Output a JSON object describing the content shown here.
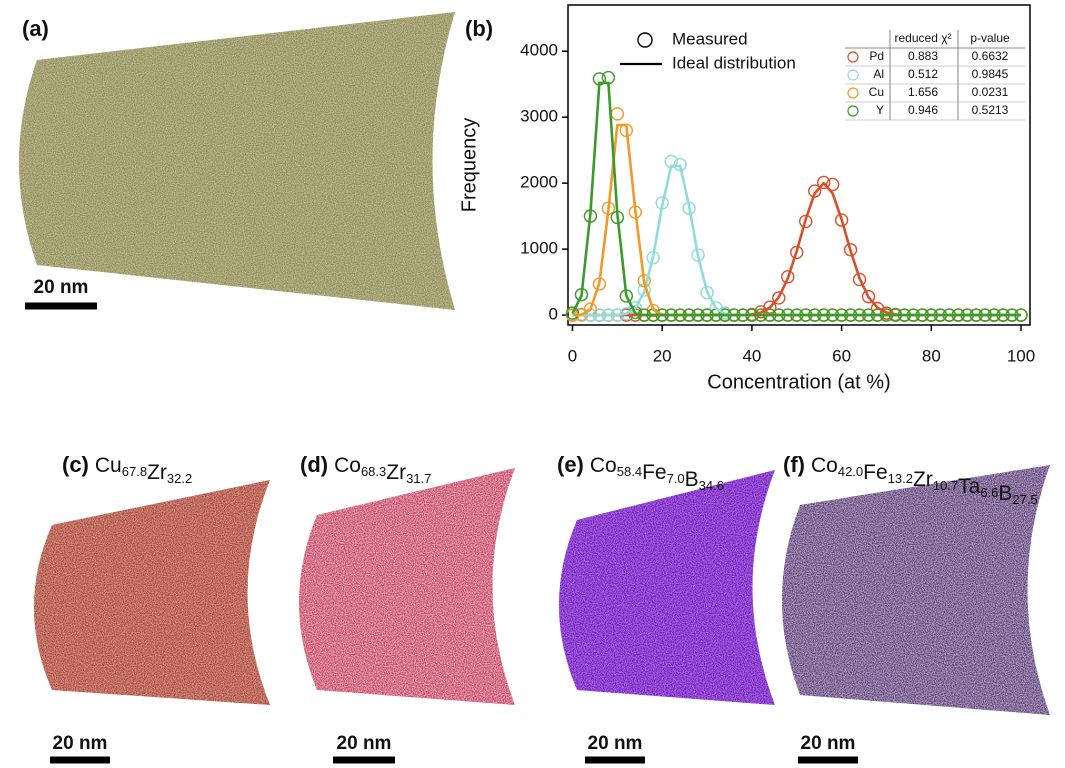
{
  "chart_data": {
    "type": "scatter",
    "xlabel": "Concentration (at %)",
    "ylabel": "Frequency",
    "xlim": [
      -1,
      102
    ],
    "ylim": [
      -150,
      4700
    ],
    "xticks": [
      0,
      20,
      40,
      60,
      80,
      100
    ],
    "yticks": [
      0,
      1000,
      2000,
      3000,
      4000
    ],
    "grid": false,
    "legend": {
      "measured": "Measured",
      "ideal": "Ideal distribution"
    },
    "table_headers": [
      "reduced χ²",
      "p-value"
    ],
    "x": [
      0,
      2,
      4,
      6,
      8,
      10,
      12,
      14,
      16,
      18,
      20,
      22,
      24,
      26,
      28,
      30,
      32,
      34,
      36,
      38,
      40,
      42,
      44,
      46,
      48,
      50,
      52,
      54,
      56,
      58,
      60,
      62,
      64,
      66,
      68,
      70,
      72,
      74,
      76,
      78,
      80,
      82,
      84,
      86,
      88,
      90,
      92,
      94,
      96,
      98,
      100
    ],
    "series": [
      {
        "name": "Pd",
        "color": "#d8502a",
        "reduced_chi2": 0.883,
        "p_value": 0.6632,
        "values": [
          0,
          0,
          0,
          0,
          0,
          0,
          0,
          0,
          0,
          0,
          0,
          0,
          0,
          0,
          0,
          0,
          0,
          0,
          0,
          0,
          10,
          50,
          120,
          260,
          580,
          950,
          1420,
          1880,
          2010,
          1980,
          1440,
          990,
          540,
          280,
          100,
          30,
          10,
          0,
          0,
          0,
          0,
          0,
          0,
          0,
          0,
          0,
          0,
          0,
          0,
          0,
          0
        ],
        "fit": [
          0,
          0,
          0,
          0,
          0,
          0,
          0,
          0,
          0,
          0,
          0,
          0,
          0,
          0,
          0,
          0,
          0,
          0,
          0,
          0,
          12,
          40,
          112,
          271,
          556,
          973,
          1452,
          1846,
          2000,
          1846,
          1452,
          973,
          556,
          271,
          112,
          40,
          12,
          0,
          0,
          0,
          0,
          0,
          0,
          0,
          0,
          0,
          0,
          0,
          0,
          0,
          0
        ]
      },
      {
        "name": "Al",
        "color": "#8fdcdc",
        "reduced_chi2": 0.512,
        "p_value": 0.9845,
        "values": [
          0,
          0,
          0,
          0,
          0,
          0,
          20,
          110,
          380,
          870,
          1700,
          2330,
          2280,
          1620,
          910,
          340,
          110,
          30,
          0,
          0,
          0,
          0,
          0,
          0,
          0,
          0,
          0,
          0,
          0,
          0,
          0,
          0,
          0,
          0,
          0,
          0,
          0,
          0,
          0,
          0,
          0,
          0,
          0,
          0,
          0,
          0,
          0,
          0,
          0,
          0,
          0
        ],
        "fit": [
          0,
          0,
          0,
          0,
          0,
          0,
          22,
          103,
          355,
          893,
          1659,
          2261,
          2261,
          1659,
          893,
          355,
          103,
          22,
          0,
          0,
          0,
          0,
          0,
          0,
          0,
          0,
          0,
          0,
          0,
          0,
          0,
          0,
          0,
          0,
          0,
          0,
          0,
          0,
          0,
          0,
          0,
          0,
          0,
          0,
          0,
          0,
          0,
          0,
          0,
          0,
          0
        ]
      },
      {
        "name": "Cu",
        "color": "#f09a28",
        "reduced_chi2": 1.656,
        "p_value": 0.0231,
        "values": [
          0,
          10,
          90,
          470,
          1620,
          3050,
          2800,
          1560,
          520,
          70,
          0,
          0,
          0,
          0,
          0,
          0,
          0,
          0,
          0,
          0,
          0,
          0,
          0,
          0,
          0,
          0,
          0,
          0,
          0,
          0,
          0,
          0,
          0,
          0,
          0,
          0,
          0,
          0,
          0,
          0,
          0,
          0,
          0,
          0,
          0,
          0,
          0,
          0,
          0,
          0,
          0
        ],
        "fit": [
          0,
          8,
          82,
          488,
          1591,
          2879,
          2879,
          1591,
          488,
          82,
          8,
          0,
          0,
          0,
          0,
          0,
          0,
          0,
          0,
          0,
          0,
          0,
          0,
          0,
          0,
          0,
          0,
          0,
          0,
          0,
          0,
          0,
          0,
          0,
          0,
          0,
          0,
          0,
          0,
          0,
          0,
          0,
          0,
          0,
          0,
          0,
          0,
          0,
          0,
          0,
          0
        ]
      },
      {
        "name": "Y",
        "color": "#3a9a2a",
        "reduced_chi2": 0.946,
        "p_value": 0.5213,
        "values": [
          30,
          310,
          1500,
          3580,
          3600,
          1480,
          290,
          40,
          0,
          0,
          0,
          0,
          0,
          0,
          0,
          0,
          0,
          0,
          0,
          0,
          0,
          0,
          0,
          0,
          0,
          0,
          0,
          0,
          0,
          0,
          0,
          0,
          0,
          0,
          0,
          0,
          0,
          0,
          0,
          0,
          0,
          0,
          0,
          0,
          0,
          0,
          0,
          0,
          0,
          0,
          0
        ],
        "fit": [
          25,
          296,
          1540,
          3520,
          3520,
          1540,
          296,
          25,
          0,
          0,
          0,
          0,
          0,
          0,
          0,
          0,
          0,
          0,
          0,
          0,
          0,
          0,
          0,
          0,
          0,
          0,
          0,
          0,
          0,
          0,
          0,
          0,
          0,
          0,
          0,
          0,
          0,
          0,
          0,
          0,
          0,
          0,
          0,
          0,
          0,
          0,
          0,
          0,
          0,
          0,
          0
        ]
      }
    ]
  },
  "panels": {
    "a": {
      "label": "(a)",
      "scale": "20 nm"
    },
    "b": {
      "label": "(b)"
    },
    "c": {
      "label": "(c)",
      "scale": "20 nm",
      "formula": [
        {
          "text": "Cu",
          "sub": "67.8"
        },
        {
          "text": "Zr",
          "sub": "32.2"
        }
      ]
    },
    "d": {
      "label": "(d)",
      "scale": "20 nm",
      "formula": [
        {
          "text": "Co",
          "sub": "68.3"
        },
        {
          "text": "Zr",
          "sub": "31.7"
        }
      ]
    },
    "e": {
      "label": "(e)",
      "scale": "20 nm",
      "formula": [
        {
          "text": "Co",
          "sub": "58.4"
        },
        {
          "text": "Fe",
          "sub": "7.0"
        },
        {
          "text": "B",
          "sub": "34.6"
        }
      ]
    },
    "f": {
      "label": "(f)",
      "scale": "20 nm",
      "formula": [
        {
          "text": "Co",
          "sub": "42.0"
        },
        {
          "text": "Fe",
          "sub": "13.2"
        },
        {
          "text": "Zr",
          "sub": "10.7"
        },
        {
          "text": "Ta",
          "sub": "6.6"
        },
        {
          "text": "B",
          "sub": "27.5"
        }
      ]
    }
  }
}
